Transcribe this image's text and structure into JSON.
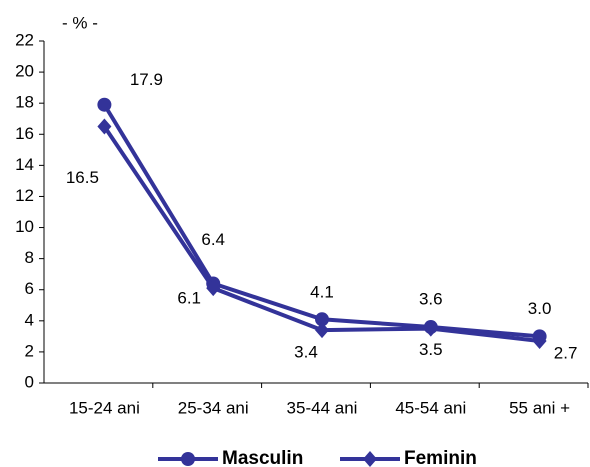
{
  "chart_data": {
    "type": "line",
    "y_label": "- % -",
    "categories": [
      "15-24 ani",
      "25-34 ani",
      "35-44 ani",
      "45-54 ani",
      "55 ani +"
    ],
    "series": [
      {
        "name": "Masculin",
        "color": "#333399",
        "marker": "circle",
        "values": [
          17.9,
          6.4,
          4.1,
          3.6,
          3.0
        ],
        "value_labels": [
          "17.9",
          "6.4",
          "4.1",
          "3.6",
          "3.0"
        ]
      },
      {
        "name": "Feminin",
        "color": "#333399",
        "marker": "diamond",
        "values": [
          16.5,
          6.1,
          3.4,
          3.5,
          2.7
        ],
        "value_labels": [
          "16.5",
          "6.1",
          "3.4",
          "3.5",
          "2.7"
        ]
      }
    ],
    "ylim": [
      0,
      22
    ],
    "yticks": [
      0,
      2,
      4,
      6,
      8,
      10,
      12,
      14,
      16,
      18,
      20,
      22
    ],
    "grid": false,
    "legend": "bottom"
  }
}
